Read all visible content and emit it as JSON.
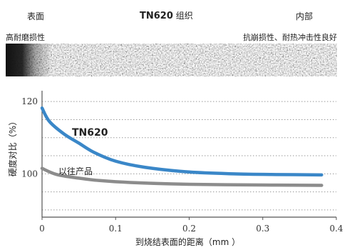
{
  "header": {
    "left_label": "表面",
    "center_label_bold": "TN620",
    "center_label_rest": "组织",
    "right_label": "内部"
  },
  "micro_band": {
    "left_caption": "高耐磨损性",
    "right_caption": "抗崩损性、耐热冲击性良好"
  },
  "chart_data": {
    "type": "line",
    "title": "",
    "xlabel": "到烧结表面的距离（mm ）",
    "ylabel": "硬度对比（%）",
    "xlim": [
      0,
      0.4
    ],
    "ylim": [
      88,
      123
    ],
    "xticks": [
      0,
      0.1,
      0.2,
      0.3,
      0.4
    ],
    "xtick_labels": [
      "0",
      "0.1",
      "0.2",
      "0.3",
      "0.4"
    ],
    "yticks": [
      100,
      120
    ],
    "ytick_labels": [
      "100",
      "120"
    ],
    "grid": "horizontal-dotted",
    "series": [
      {
        "name": "TN620",
        "color": "#3a87c8",
        "x": [
          0,
          0.01,
          0.03,
          0.05,
          0.07,
          0.1,
          0.14,
          0.2,
          0.26,
          0.32,
          0.38
        ],
        "y": [
          118.2,
          114.5,
          111.0,
          108.5,
          106.0,
          103.5,
          101.8,
          100.5,
          100.0,
          99.8,
          99.7
        ]
      },
      {
        "name": "以往产品",
        "color": "#8c8c8c",
        "x": [
          0,
          0.02,
          0.05,
          0.08,
          0.12,
          0.2,
          0.3,
          0.38
        ],
        "y": [
          101.5,
          99.8,
          98.8,
          98.1,
          97.6,
          97.1,
          96.9,
          96.8
        ]
      }
    ]
  }
}
